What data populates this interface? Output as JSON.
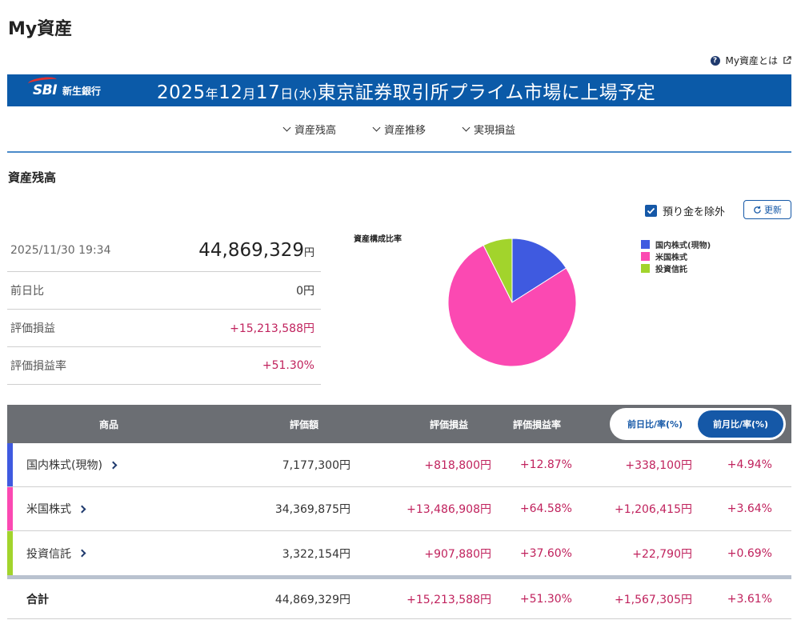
{
  "page_title": "My資産",
  "help_link": "My資産とは",
  "banner": {
    "logo_sbi": "SBI",
    "logo_bank": "新生銀行",
    "date_year": "2025",
    "date_y_suffix": "年",
    "date_month": "12",
    "date_m_suffix": "月",
    "date_day": "17",
    "date_d_suffix": "日",
    "date_weekday": "(水)",
    "message": "東京証券取引所プライム市場に上場予定",
    "colors": {
      "background": "#0b5aa8",
      "logo_accent": "#e03030"
    }
  },
  "section_nav": [
    {
      "label": "資産残高"
    },
    {
      "label": "資産推移"
    },
    {
      "label": "実現損益"
    }
  ],
  "section_heading": "資産残高",
  "controls": {
    "exclude_deposits_label": "預り金を除外",
    "exclude_deposits_checked": true,
    "refresh_label": "更新"
  },
  "summary": {
    "timestamp": "2025/11/30 19:34",
    "total_value": "44,869,329",
    "yen": "円",
    "rows": [
      {
        "label": "前日比",
        "value": "0円",
        "positive": false
      },
      {
        "label": "評価損益",
        "value": "+15,213,588円",
        "positive": true
      },
      {
        "label": "評価損益率",
        "value": "+51.30%",
        "positive": true
      }
    ]
  },
  "chart_data": {
    "type": "pie",
    "title": "資産構成比率",
    "slices": [
      {
        "label": "国内株式(現物)",
        "value": 7177300,
        "color": "#3f5ae0"
      },
      {
        "label": "米国株式",
        "value": 34369875,
        "color": "#fb49b2"
      },
      {
        "label": "投資信託",
        "value": 3322154,
        "color": "#a2d42c"
      }
    ],
    "legend_position": "right"
  },
  "table": {
    "headers": {
      "product": "商品",
      "valuation": "評価額",
      "pl": "評価損益",
      "pl_rate": "評価損益率"
    },
    "toggle": {
      "options": [
        "前日比/率(%)",
        "前月比/率(%)"
      ],
      "selected": "前月比/率(%)"
    },
    "rows": [
      {
        "name": "国内株式(現物)",
        "color": "#3f5ae0",
        "valuation": "7,177,300円",
        "pl": "+818,800円",
        "pl_rate": "+12.87%",
        "change": "+338,100円",
        "change_rate": "+4.94%"
      },
      {
        "name": "米国株式",
        "color": "#fb49b2",
        "valuation": "34,369,875円",
        "pl": "+13,486,908円",
        "pl_rate": "+64.58%",
        "change": "+1,206,415円",
        "change_rate": "+3.64%"
      },
      {
        "name": "投資信託",
        "color": "#a2d42c",
        "valuation": "3,322,154円",
        "pl": "+907,880円",
        "pl_rate": "+37.60%",
        "change": "+22,790円",
        "change_rate": "+0.69%"
      }
    ],
    "total": {
      "label": "合計",
      "valuation": "44,869,329円",
      "pl": "+15,213,588円",
      "pl_rate": "+51.30%",
      "change": "+1,567,305円",
      "change_rate": "+3.61%"
    }
  }
}
